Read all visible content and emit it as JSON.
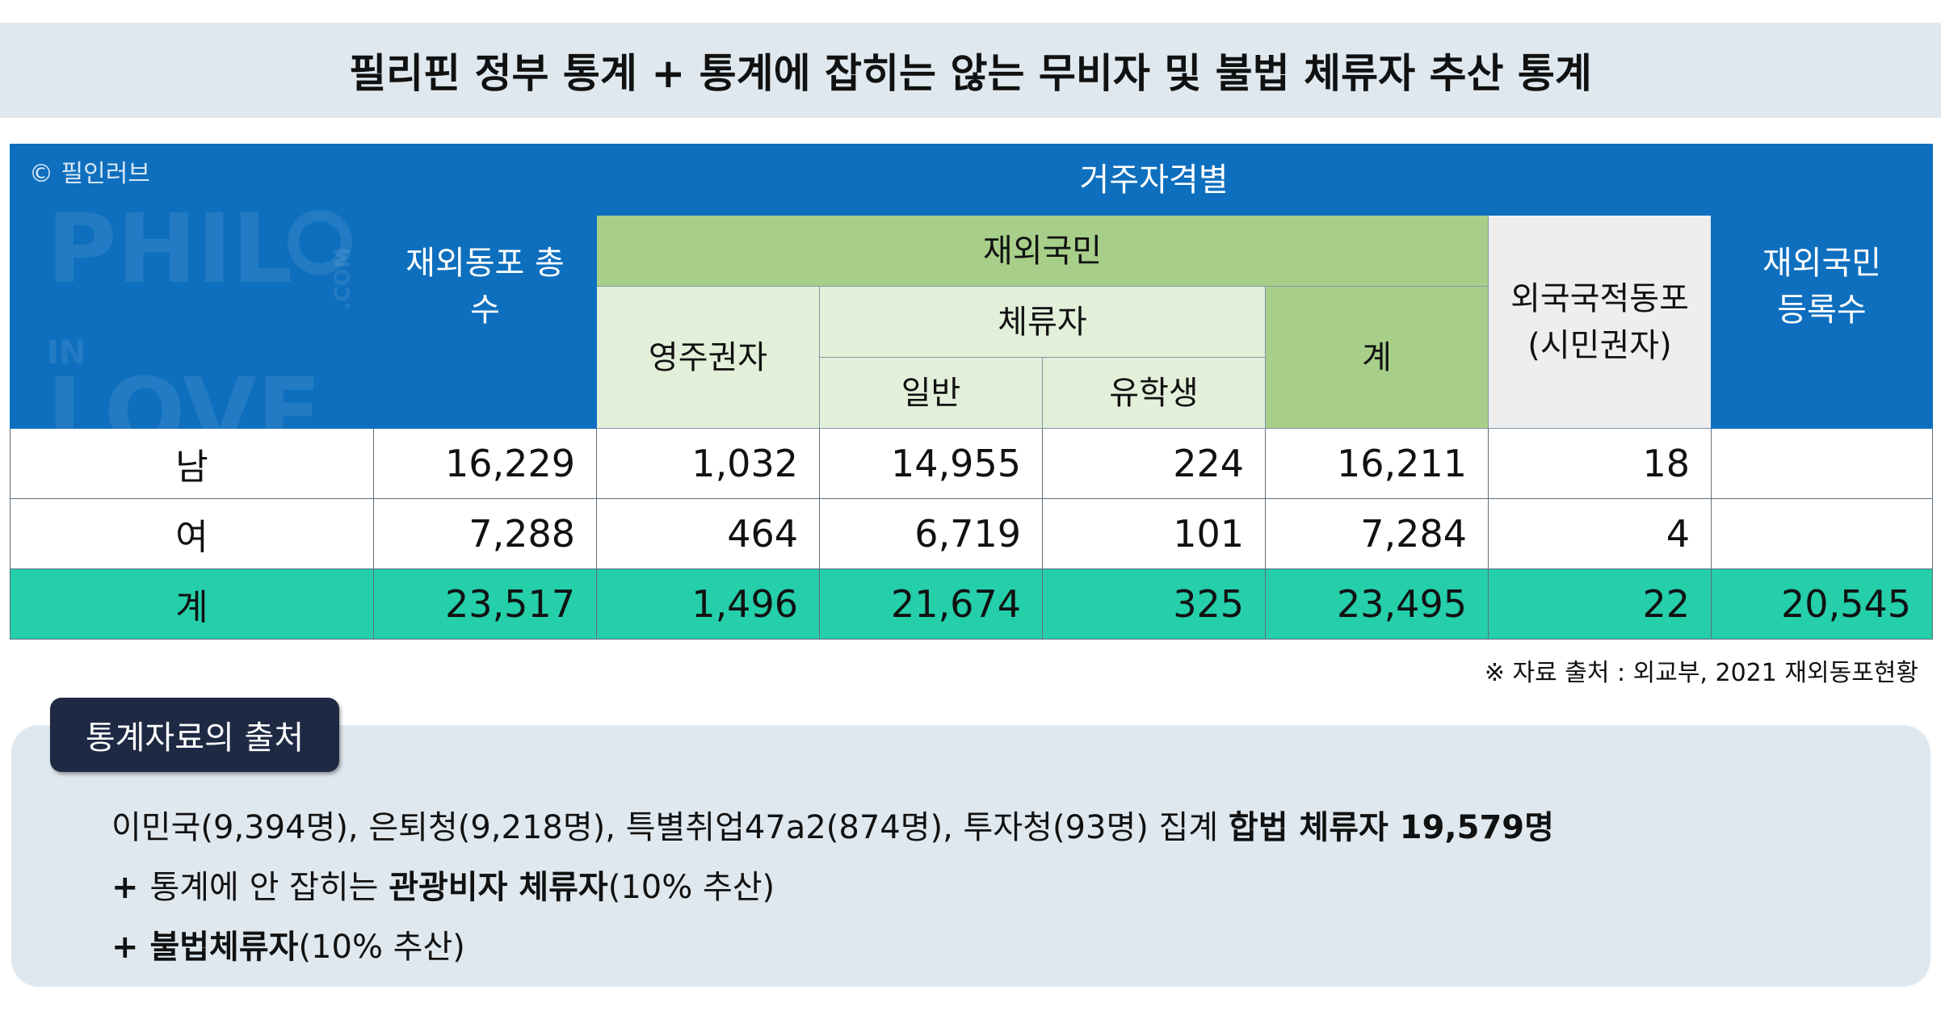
{
  "title": "필리핀 정부 통계 + 통계에 잡히는 않는 무비자 및 불법 체류자 추산 통계",
  "watermark": {
    "copyright": "© 필인러브",
    "logo_text": "PHIL IN LOVE .COM"
  },
  "table": {
    "headers": {
      "overseas_total": "재외동포 총수",
      "by_residence": "거주자격별",
      "nationals": "재외국민",
      "permanent": "영주권자",
      "sojourners": "체류자",
      "general": "일반",
      "students": "유학생",
      "subtotal": "계",
      "foreign_nationals": "외국국적동포 (시민권자)",
      "registered": "재외국민 등록수"
    },
    "rows": [
      {
        "label": "남",
        "overseas_total": "16,229",
        "permanent": "1,032",
        "general": "14,955",
        "students": "224",
        "subtotal": "16,211",
        "foreign_nationals": "18",
        "registered": ""
      },
      {
        "label": "여",
        "overseas_total": "7,288",
        "permanent": "464",
        "general": "6,719",
        "students": "101",
        "subtotal": "7,284",
        "foreign_nationals": "4",
        "registered": ""
      },
      {
        "label": "계",
        "overseas_total": "23,517",
        "permanent": "1,496",
        "general": "21,674",
        "students": "325",
        "subtotal": "23,495",
        "foreign_nationals": "22",
        "registered": "20,545"
      }
    ]
  },
  "source_note": "※ 자료 출처 :  외교부, 2021 재외동포현황",
  "sources_section": {
    "badge": "통계자료의 출처",
    "line1_text": "이민국(9,394명), 은퇴청(9,218명), 특별취업47a2(874명), 투자청(93명) 집계 ",
    "line1_bold": "합법 체류자 19,579명",
    "line2_prefix": "+ ",
    "line2_text": "통계에 안 잡히는 ",
    "line2_bold": "관광비자 체류자",
    "line2_suffix": "(10% 추산)",
    "line3_prefix": "+ ",
    "line3_bold": "불법체류자",
    "line3_suffix": "(10% 추산)"
  },
  "colors": {
    "header_blue": "#0e6fbe",
    "header_green": "#a8cf8a",
    "header_light_green": "#e2efd9",
    "header_gray": "#eeeeee",
    "total_row_teal": "#24cfaa",
    "title_background": "#dfe8ee",
    "badge_navy": "#1e2a44"
  }
}
